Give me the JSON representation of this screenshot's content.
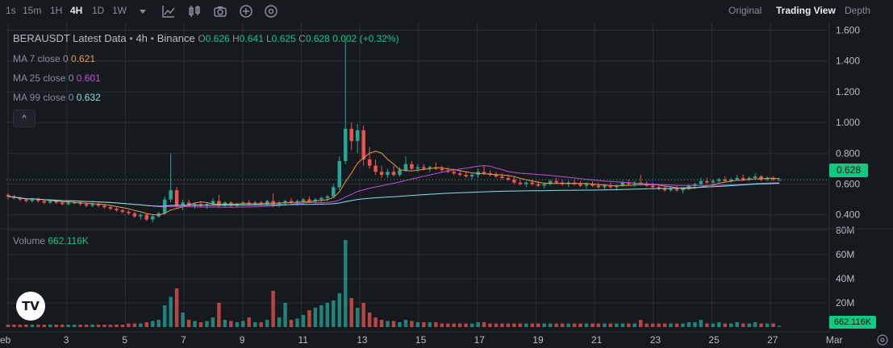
{
  "toolbar": {
    "intervals": [
      {
        "label": "1s",
        "active": false
      },
      {
        "label": "15m",
        "active": false
      },
      {
        "label": "1H",
        "active": false
      },
      {
        "label": "4H",
        "active": true
      },
      {
        "label": "1D",
        "active": false
      },
      {
        "label": "1W",
        "active": false
      }
    ],
    "icons": [
      "dropdown-caret-icon",
      "indicators-icon",
      "chart-type-icon",
      "screenshot-icon",
      "add-icon",
      "settings-dial-icon"
    ],
    "views": [
      {
        "label": "Original",
        "active": false
      },
      {
        "label": "Trading View",
        "active": true
      },
      {
        "label": "Depth",
        "active": false
      }
    ]
  },
  "legend": {
    "title": "BERAUSDT Latest Data",
    "interval": "4h",
    "exchange": "Binance",
    "o_label": "O",
    "o": "0.626",
    "h_label": "H",
    "h": "0.641",
    "l_label": "L",
    "l": "0.625",
    "c_label": "C",
    "c": "0.628",
    "change": "0.002 (+0.32%)"
  },
  "ma": [
    {
      "label": "MA 7 close 0",
      "value": "0.621",
      "color": "#e59a4a"
    },
    {
      "label": "MA 25 close 0",
      "value": "0.601",
      "color": "#c34fd6"
    },
    {
      "label": "MA 99 close 0",
      "value": "0.632",
      "color": "#7ee6e6"
    }
  ],
  "collapse_label": "^",
  "volume": {
    "label": "Volume",
    "value": "662.116K"
  },
  "current_price": "0.628",
  "current_volume": "662.116K",
  "logo_text": "TV",
  "colors": {
    "up": "#26a69a",
    "down": "#ef5350",
    "background": "#161a1e",
    "grid": "#2b2f36",
    "axis_text": "#b7bdc6"
  },
  "chart_data": {
    "type": "candlestick",
    "price_axis": {
      "ticks": [
        "1.600",
        "1.400",
        "1.200",
        "1.000",
        "0.800",
        "0.600",
        "0.400"
      ],
      "ylim": [
        0.32,
        1.65
      ]
    },
    "volume_axis": {
      "ticks": [
        "80M",
        "60M",
        "40M",
        "20M"
      ],
      "ylim": [
        0,
        80
      ]
    },
    "x_ticks": [
      "eb",
      "3",
      "5",
      "7",
      "9",
      "11",
      "13",
      "15",
      "17",
      "19",
      "21",
      "23",
      "25",
      "27",
      "Mar"
    ],
    "candles": [
      {
        "o": 0.53,
        "h": 0.54,
        "l": 0.5,
        "c": 0.52,
        "v": 2
      },
      {
        "o": 0.52,
        "h": 0.53,
        "l": 0.5,
        "c": 0.51,
        "v": 2
      },
      {
        "o": 0.51,
        "h": 0.52,
        "l": 0.49,
        "c": 0.5,
        "v": 2
      },
      {
        "o": 0.5,
        "h": 0.51,
        "l": 0.48,
        "c": 0.49,
        "v": 2
      },
      {
        "o": 0.49,
        "h": 0.51,
        "l": 0.48,
        "c": 0.5,
        "v": 2
      },
      {
        "o": 0.5,
        "h": 0.51,
        "l": 0.48,
        "c": 0.49,
        "v": 2
      },
      {
        "o": 0.49,
        "h": 0.5,
        "l": 0.47,
        "c": 0.48,
        "v": 2
      },
      {
        "o": 0.48,
        "h": 0.5,
        "l": 0.47,
        "c": 0.49,
        "v": 2
      },
      {
        "o": 0.49,
        "h": 0.5,
        "l": 0.47,
        "c": 0.48,
        "v": 2
      },
      {
        "o": 0.48,
        "h": 0.49,
        "l": 0.46,
        "c": 0.47,
        "v": 2
      },
      {
        "o": 0.47,
        "h": 0.49,
        "l": 0.46,
        "c": 0.48,
        "v": 2
      },
      {
        "o": 0.48,
        "h": 0.49,
        "l": 0.47,
        "c": 0.48,
        "v": 2
      },
      {
        "o": 0.48,
        "h": 0.49,
        "l": 0.46,
        "c": 0.47,
        "v": 2
      },
      {
        "o": 0.47,
        "h": 0.48,
        "l": 0.45,
        "c": 0.46,
        "v": 2
      },
      {
        "o": 0.46,
        "h": 0.48,
        "l": 0.45,
        "c": 0.47,
        "v": 2
      },
      {
        "o": 0.47,
        "h": 0.48,
        "l": 0.45,
        "c": 0.46,
        "v": 2
      },
      {
        "o": 0.46,
        "h": 0.47,
        "l": 0.44,
        "c": 0.45,
        "v": 2
      },
      {
        "o": 0.45,
        "h": 0.46,
        "l": 0.43,
        "c": 0.44,
        "v": 2
      },
      {
        "o": 0.44,
        "h": 0.45,
        "l": 0.42,
        "c": 0.43,
        "v": 2
      },
      {
        "o": 0.43,
        "h": 0.44,
        "l": 0.41,
        "c": 0.42,
        "v": 2
      },
      {
        "o": 0.42,
        "h": 0.43,
        "l": 0.4,
        "c": 0.41,
        "v": 3
      },
      {
        "o": 0.41,
        "h": 0.42,
        "l": 0.38,
        "c": 0.39,
        "v": 3
      },
      {
        "o": 0.39,
        "h": 0.41,
        "l": 0.37,
        "c": 0.4,
        "v": 3
      },
      {
        "o": 0.4,
        "h": 0.41,
        "l": 0.36,
        "c": 0.37,
        "v": 4
      },
      {
        "o": 0.37,
        "h": 0.4,
        "l": 0.35,
        "c": 0.39,
        "v": 5
      },
      {
        "o": 0.39,
        "h": 0.42,
        "l": 0.38,
        "c": 0.41,
        "v": 6
      },
      {
        "o": 0.41,
        "h": 0.52,
        "l": 0.4,
        "c": 0.5,
        "v": 18
      },
      {
        "o": 0.5,
        "h": 0.8,
        "l": 0.48,
        "c": 0.56,
        "v": 25
      },
      {
        "o": 0.56,
        "h": 0.58,
        "l": 0.44,
        "c": 0.46,
        "v": 32
      },
      {
        "o": 0.46,
        "h": 0.5,
        "l": 0.43,
        "c": 0.48,
        "v": 12
      },
      {
        "o": 0.48,
        "h": 0.5,
        "l": 0.45,
        "c": 0.46,
        "v": 6
      },
      {
        "o": 0.46,
        "h": 0.48,
        "l": 0.44,
        "c": 0.47,
        "v": 5
      },
      {
        "o": 0.47,
        "h": 0.49,
        "l": 0.45,
        "c": 0.46,
        "v": 4
      },
      {
        "o": 0.46,
        "h": 0.48,
        "l": 0.44,
        "c": 0.47,
        "v": 5
      },
      {
        "o": 0.47,
        "h": 0.51,
        "l": 0.46,
        "c": 0.49,
        "v": 8
      },
      {
        "o": 0.49,
        "h": 0.53,
        "l": 0.45,
        "c": 0.46,
        "v": 20
      },
      {
        "o": 0.46,
        "h": 0.49,
        "l": 0.45,
        "c": 0.48,
        "v": 6
      },
      {
        "o": 0.48,
        "h": 0.49,
        "l": 0.45,
        "c": 0.46,
        "v": 5
      },
      {
        "o": 0.46,
        "h": 0.48,
        "l": 0.45,
        "c": 0.47,
        "v": 4
      },
      {
        "o": 0.47,
        "h": 0.49,
        "l": 0.46,
        "c": 0.48,
        "v": 5
      },
      {
        "o": 0.48,
        "h": 0.5,
        "l": 0.46,
        "c": 0.47,
        "v": 8
      },
      {
        "o": 0.47,
        "h": 0.49,
        "l": 0.46,
        "c": 0.48,
        "v": 4
      },
      {
        "o": 0.48,
        "h": 0.49,
        "l": 0.46,
        "c": 0.47,
        "v": 4
      },
      {
        "o": 0.47,
        "h": 0.5,
        "l": 0.46,
        "c": 0.49,
        "v": 6
      },
      {
        "o": 0.49,
        "h": 0.54,
        "l": 0.45,
        "c": 0.47,
        "v": 30
      },
      {
        "o": 0.47,
        "h": 0.49,
        "l": 0.45,
        "c": 0.48,
        "v": 8
      },
      {
        "o": 0.48,
        "h": 0.5,
        "l": 0.46,
        "c": 0.49,
        "v": 20
      },
      {
        "o": 0.49,
        "h": 0.51,
        "l": 0.47,
        "c": 0.48,
        "v": 6
      },
      {
        "o": 0.48,
        "h": 0.5,
        "l": 0.46,
        "c": 0.49,
        "v": 7
      },
      {
        "o": 0.49,
        "h": 0.51,
        "l": 0.47,
        "c": 0.5,
        "v": 10
      },
      {
        "o": 0.5,
        "h": 0.52,
        "l": 0.48,
        "c": 0.49,
        "v": 14
      },
      {
        "o": 0.49,
        "h": 0.51,
        "l": 0.47,
        "c": 0.5,
        "v": 16
      },
      {
        "o": 0.5,
        "h": 0.52,
        "l": 0.48,
        "c": 0.51,
        "v": 18
      },
      {
        "o": 0.51,
        "h": 0.53,
        "l": 0.49,
        "c": 0.52,
        "v": 20
      },
      {
        "o": 0.52,
        "h": 0.6,
        "l": 0.51,
        "c": 0.58,
        "v": 22
      },
      {
        "o": 0.58,
        "h": 0.78,
        "l": 0.56,
        "c": 0.75,
        "v": 28
      },
      {
        "o": 0.75,
        "h": 1.53,
        "l": 0.73,
        "c": 0.96,
        "v": 72
      },
      {
        "o": 0.96,
        "h": 1.0,
        "l": 0.82,
        "c": 0.88,
        "v": 24
      },
      {
        "o": 0.88,
        "h": 0.99,
        "l": 0.8,
        "c": 0.95,
        "v": 16
      },
      {
        "o": 0.95,
        "h": 0.98,
        "l": 0.72,
        "c": 0.76,
        "v": 20
      },
      {
        "o": 0.76,
        "h": 0.84,
        "l": 0.7,
        "c": 0.72,
        "v": 12
      },
      {
        "o": 0.72,
        "h": 0.76,
        "l": 0.66,
        "c": 0.68,
        "v": 8
      },
      {
        "o": 0.68,
        "h": 0.72,
        "l": 0.64,
        "c": 0.66,
        "v": 6
      },
      {
        "o": 0.66,
        "h": 0.7,
        "l": 0.64,
        "c": 0.68,
        "v": 5
      },
      {
        "o": 0.68,
        "h": 0.72,
        "l": 0.65,
        "c": 0.66,
        "v": 5
      },
      {
        "o": 0.66,
        "h": 0.71,
        "l": 0.65,
        "c": 0.69,
        "v": 4
      },
      {
        "o": 0.69,
        "h": 0.78,
        "l": 0.68,
        "c": 0.73,
        "v": 6
      },
      {
        "o": 0.73,
        "h": 0.75,
        "l": 0.69,
        "c": 0.7,
        "v": 5
      },
      {
        "o": 0.7,
        "h": 0.73,
        "l": 0.68,
        "c": 0.71,
        "v": 4
      },
      {
        "o": 0.71,
        "h": 0.73,
        "l": 0.69,
        "c": 0.7,
        "v": 4
      },
      {
        "o": 0.7,
        "h": 0.72,
        "l": 0.68,
        "c": 0.71,
        "v": 4
      },
      {
        "o": 0.71,
        "h": 0.74,
        "l": 0.69,
        "c": 0.7,
        "v": 4
      },
      {
        "o": 0.7,
        "h": 0.72,
        "l": 0.68,
        "c": 0.69,
        "v": 3
      },
      {
        "o": 0.69,
        "h": 0.71,
        "l": 0.67,
        "c": 0.68,
        "v": 3
      },
      {
        "o": 0.68,
        "h": 0.7,
        "l": 0.66,
        "c": 0.67,
        "v": 3
      },
      {
        "o": 0.67,
        "h": 0.69,
        "l": 0.65,
        "c": 0.66,
        "v": 3
      },
      {
        "o": 0.66,
        "h": 0.68,
        "l": 0.64,
        "c": 0.65,
        "v": 3
      },
      {
        "o": 0.65,
        "h": 0.67,
        "l": 0.63,
        "c": 0.66,
        "v": 3
      },
      {
        "o": 0.66,
        "h": 0.7,
        "l": 0.64,
        "c": 0.68,
        "v": 4
      },
      {
        "o": 0.68,
        "h": 0.72,
        "l": 0.66,
        "c": 0.67,
        "v": 4
      },
      {
        "o": 0.67,
        "h": 0.69,
        "l": 0.65,
        "c": 0.66,
        "v": 3
      },
      {
        "o": 0.66,
        "h": 0.68,
        "l": 0.64,
        "c": 0.65,
        "v": 3
      },
      {
        "o": 0.65,
        "h": 0.67,
        "l": 0.63,
        "c": 0.64,
        "v": 3
      },
      {
        "o": 0.64,
        "h": 0.66,
        "l": 0.62,
        "c": 0.63,
        "v": 3
      },
      {
        "o": 0.63,
        "h": 0.65,
        "l": 0.6,
        "c": 0.61,
        "v": 3
      },
      {
        "o": 0.61,
        "h": 0.63,
        "l": 0.59,
        "c": 0.6,
        "v": 3
      },
      {
        "o": 0.6,
        "h": 0.62,
        "l": 0.58,
        "c": 0.61,
        "v": 3
      },
      {
        "o": 0.61,
        "h": 0.63,
        "l": 0.59,
        "c": 0.6,
        "v": 3
      },
      {
        "o": 0.6,
        "h": 0.62,
        "l": 0.58,
        "c": 0.59,
        "v": 3
      },
      {
        "o": 0.59,
        "h": 0.61,
        "l": 0.57,
        "c": 0.6,
        "v": 3
      },
      {
        "o": 0.6,
        "h": 0.63,
        "l": 0.59,
        "c": 0.62,
        "v": 3
      },
      {
        "o": 0.62,
        "h": 0.64,
        "l": 0.6,
        "c": 0.61,
        "v": 3
      },
      {
        "o": 0.61,
        "h": 0.63,
        "l": 0.59,
        "c": 0.6,
        "v": 3
      },
      {
        "o": 0.6,
        "h": 0.62,
        "l": 0.58,
        "c": 0.61,
        "v": 3
      },
      {
        "o": 0.61,
        "h": 0.63,
        "l": 0.59,
        "c": 0.6,
        "v": 3
      },
      {
        "o": 0.6,
        "h": 0.62,
        "l": 0.58,
        "c": 0.59,
        "v": 3
      },
      {
        "o": 0.59,
        "h": 0.61,
        "l": 0.57,
        "c": 0.6,
        "v": 3
      },
      {
        "o": 0.6,
        "h": 0.62,
        "l": 0.58,
        "c": 0.59,
        "v": 3
      },
      {
        "o": 0.59,
        "h": 0.61,
        "l": 0.57,
        "c": 0.58,
        "v": 3
      },
      {
        "o": 0.58,
        "h": 0.6,
        "l": 0.56,
        "c": 0.59,
        "v": 3
      },
      {
        "o": 0.59,
        "h": 0.61,
        "l": 0.57,
        "c": 0.58,
        "v": 3
      },
      {
        "o": 0.58,
        "h": 0.6,
        "l": 0.56,
        "c": 0.59,
        "v": 3
      },
      {
        "o": 0.59,
        "h": 0.62,
        "l": 0.58,
        "c": 0.61,
        "v": 3
      },
      {
        "o": 0.61,
        "h": 0.63,
        "l": 0.59,
        "c": 0.6,
        "v": 3
      },
      {
        "o": 0.6,
        "h": 0.62,
        "l": 0.58,
        "c": 0.61,
        "v": 3
      },
      {
        "o": 0.61,
        "h": 0.66,
        "l": 0.59,
        "c": 0.6,
        "v": 6
      },
      {
        "o": 0.6,
        "h": 0.62,
        "l": 0.58,
        "c": 0.59,
        "v": 3
      },
      {
        "o": 0.59,
        "h": 0.61,
        "l": 0.57,
        "c": 0.58,
        "v": 3
      },
      {
        "o": 0.58,
        "h": 0.6,
        "l": 0.56,
        "c": 0.57,
        "v": 3
      },
      {
        "o": 0.57,
        "h": 0.59,
        "l": 0.55,
        "c": 0.56,
        "v": 3
      },
      {
        "o": 0.56,
        "h": 0.58,
        "l": 0.55,
        "c": 0.57,
        "v": 3
      },
      {
        "o": 0.57,
        "h": 0.59,
        "l": 0.55,
        "c": 0.56,
        "v": 3
      },
      {
        "o": 0.56,
        "h": 0.58,
        "l": 0.54,
        "c": 0.57,
        "v": 3
      },
      {
        "o": 0.57,
        "h": 0.6,
        "l": 0.56,
        "c": 0.59,
        "v": 4
      },
      {
        "o": 0.59,
        "h": 0.61,
        "l": 0.57,
        "c": 0.6,
        "v": 4
      },
      {
        "o": 0.6,
        "h": 0.64,
        "l": 0.59,
        "c": 0.62,
        "v": 6
      },
      {
        "o": 0.62,
        "h": 0.64,
        "l": 0.6,
        "c": 0.61,
        "v": 3
      },
      {
        "o": 0.61,
        "h": 0.63,
        "l": 0.6,
        "c": 0.62,
        "v": 3
      },
      {
        "o": 0.62,
        "h": 0.64,
        "l": 0.61,
        "c": 0.63,
        "v": 4
      },
      {
        "o": 0.63,
        "h": 0.65,
        "l": 0.61,
        "c": 0.62,
        "v": 3
      },
      {
        "o": 0.62,
        "h": 0.64,
        "l": 0.61,
        "c": 0.63,
        "v": 3
      },
      {
        "o": 0.63,
        "h": 0.66,
        "l": 0.62,
        "c": 0.64,
        "v": 4
      },
      {
        "o": 0.64,
        "h": 0.66,
        "l": 0.62,
        "c": 0.63,
        "v": 3
      },
      {
        "o": 0.63,
        "h": 0.65,
        "l": 0.62,
        "c": 0.64,
        "v": 3
      },
      {
        "o": 0.64,
        "h": 0.67,
        "l": 0.63,
        "c": 0.65,
        "v": 4
      },
      {
        "o": 0.65,
        "h": 0.66,
        "l": 0.62,
        "c": 0.63,
        "v": 3
      },
      {
        "o": 0.63,
        "h": 0.65,
        "l": 0.62,
        "c": 0.64,
        "v": 3
      },
      {
        "o": 0.64,
        "h": 0.65,
        "l": 0.62,
        "c": 0.63,
        "v": 3
      },
      {
        "o": 0.626,
        "h": 0.641,
        "l": 0.625,
        "c": 0.628,
        "v": 1
      }
    ],
    "ma_series": [
      {
        "name": "MA 7",
        "color": "#e59a4a",
        "last": 0.621
      },
      {
        "name": "MA 25",
        "color": "#c34fd6",
        "last": 0.601
      },
      {
        "name": "MA 99",
        "color": "#7ee6e6",
        "last": 0.632
      }
    ]
  }
}
